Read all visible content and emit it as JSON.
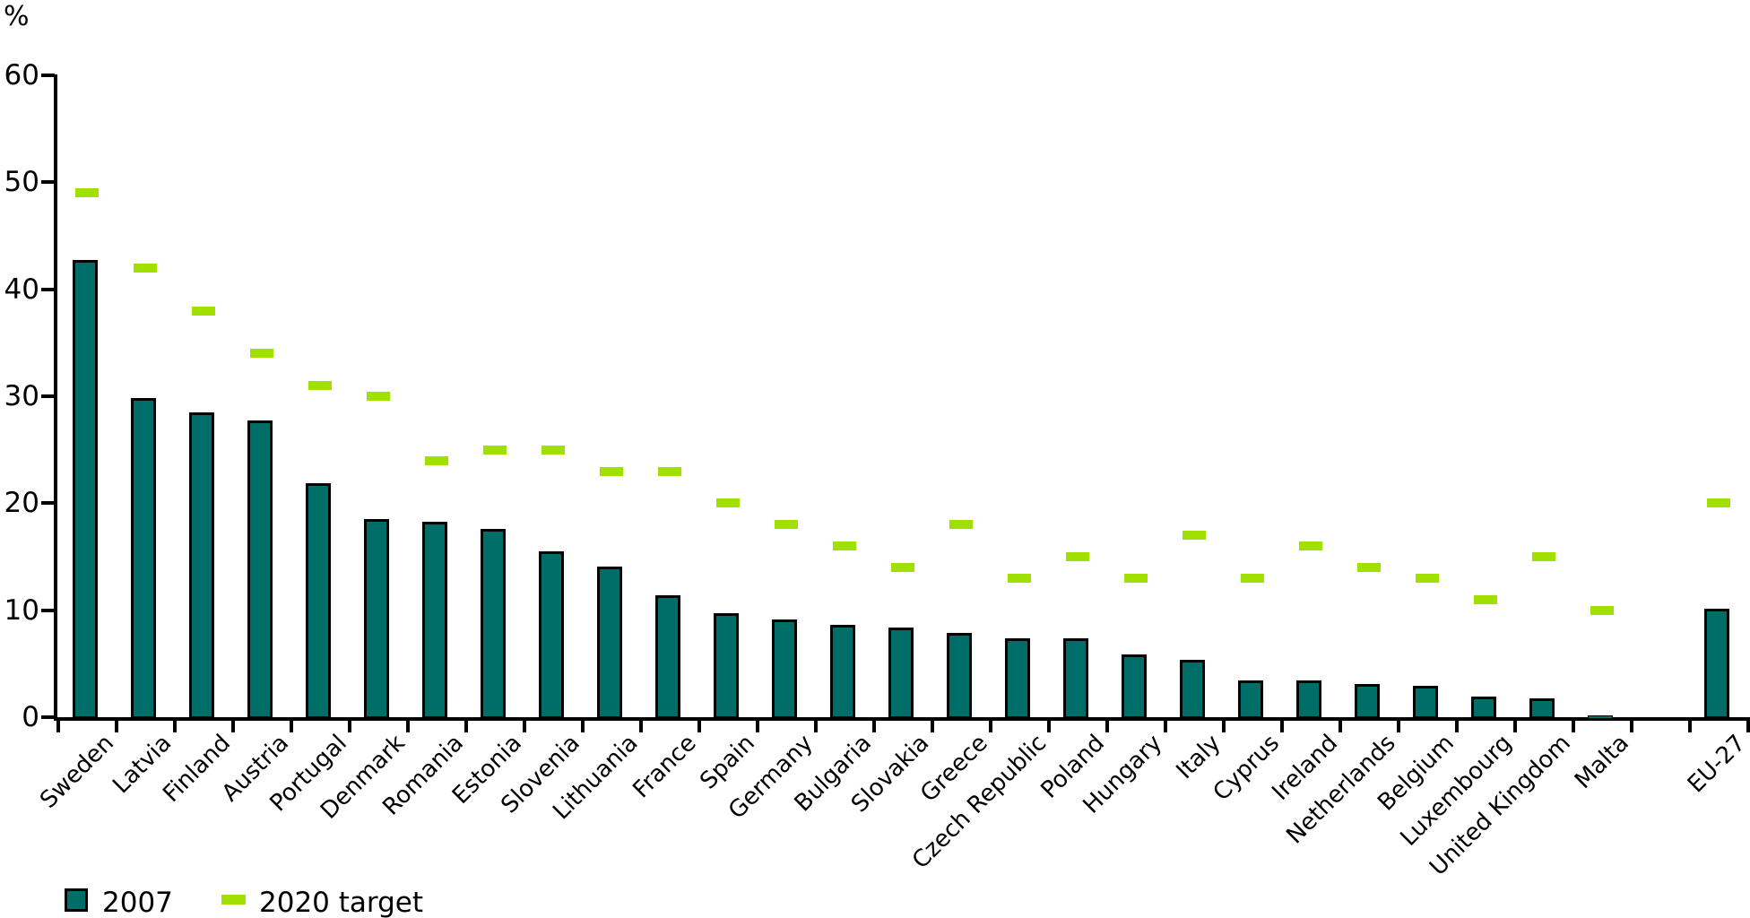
{
  "chart_data": {
    "type": "bar",
    "ylabel": "%",
    "ylim": [
      0,
      60
    ],
    "yticks": [
      0,
      10,
      20,
      30,
      40,
      50,
      60
    ],
    "grid": false,
    "legend_position": "bottom-left",
    "categories": [
      "Sweden",
      "Latvia",
      "Finland",
      "Austria",
      "Portugal",
      "Denmark",
      "Romania",
      "Estonia",
      "Slovenia",
      "Lithuania",
      "France",
      "Spain",
      "Germany",
      "Bulgaria",
      "Slovakia",
      "Greece",
      "Czech Republic",
      "Poland",
      "Hungary",
      "Italy",
      "Cyprus",
      "Ireland",
      "Netherlands",
      "Belgium",
      "Luxembourg",
      "United Kingdom",
      "Malta",
      "EU-27"
    ],
    "series": [
      {
        "name": "2007",
        "marker": "bar",
        "color": "#006e68",
        "values": [
          42.7,
          29.8,
          28.5,
          27.7,
          21.9,
          18.5,
          18.3,
          17.6,
          15.5,
          14.1,
          11.4,
          9.7,
          9.1,
          8.6,
          8.4,
          7.9,
          7.4,
          7.4,
          5.9,
          5.4,
          3.4,
          3.4,
          3.1,
          2.9,
          1.9,
          1.8,
          0.2,
          10.1
        ]
      },
      {
        "name": "2020 target",
        "marker": "dash",
        "color": "#a0e000",
        "values": [
          49,
          42,
          38,
          34,
          31,
          30,
          24,
          25,
          25,
          23,
          23,
          20,
          18,
          16,
          14,
          18,
          13,
          15,
          13,
          17,
          13,
          16,
          14,
          13,
          11,
          15,
          10,
          20
        ]
      }
    ]
  },
  "colors": {
    "bar_fill": "#006e68",
    "bar_border": "#000000",
    "target_dash": "#a0e000",
    "axis": "#000000",
    "background": "#ffffff"
  },
  "legend": {
    "items": [
      {
        "label": "2007"
      },
      {
        "label": "2020 target"
      }
    ]
  }
}
